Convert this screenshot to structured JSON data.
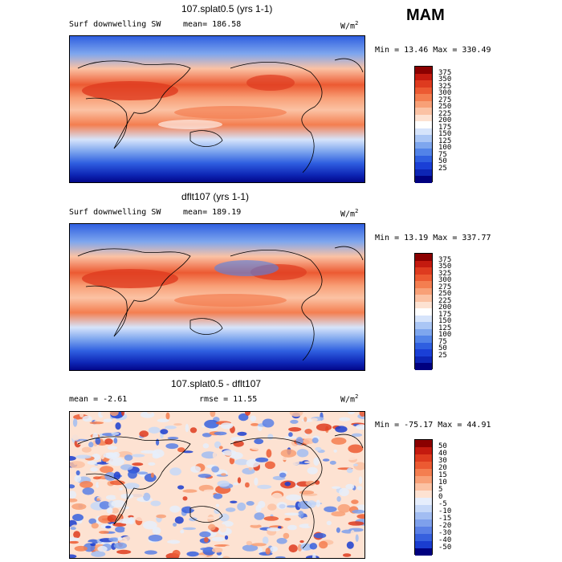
{
  "season": "MAM",
  "panels": [
    {
      "title": "107.splat0.5 (yrs 1-1)",
      "variable": "Surf downwelling SW",
      "mean_label": "mean=",
      "mean_value": "186.58",
      "units_base": "W/m",
      "units_exp": "2",
      "minmax": "Min =  13.46 Max = 330.49",
      "levels": [
        "375",
        "350",
        "325",
        "300",
        "275",
        "250",
        "225",
        "200",
        "175",
        "150",
        "125",
        "100",
        "75",
        "50",
        "25"
      ],
      "colors": [
        "#8b0000",
        "#c41a0f",
        "#de3b1f",
        "#ec5a32",
        "#f47e50",
        "#f8a077",
        "#fbc2a4",
        "#fde2d2",
        "#ffffff",
        "#d6e4fb",
        "#aac6f5",
        "#7ea6ee",
        "#5283e8",
        "#2f5fe0",
        "#1a3fd6",
        "#0d25b5",
        "#00007f"
      ],
      "stops": [
        {
          "lat": "90N",
          "v": 50
        },
        {
          "lat": "60N",
          "v": 120
        },
        {
          "lat": "30N",
          "v": 280
        },
        {
          "lat": "0",
          "v": 230
        },
        {
          "lat": "30S",
          "v": 270
        },
        {
          "lat": "60S",
          "v": 80
        },
        {
          "lat": "90S",
          "v": 20
        }
      ]
    },
    {
      "title": "dflt107 (yrs 1-1)",
      "variable": "Surf downwelling SW",
      "mean_label": "mean=",
      "mean_value": "189.19",
      "units_base": "W/m",
      "units_exp": "2",
      "minmax": "Min =  13.19 Max = 337.77",
      "levels": [
        "375",
        "350",
        "325",
        "300",
        "275",
        "250",
        "225",
        "200",
        "175",
        "150",
        "125",
        "100",
        "75",
        "50",
        "25"
      ],
      "colors": [
        "#8b0000",
        "#c41a0f",
        "#de3b1f",
        "#ec5a32",
        "#f47e50",
        "#f8a077",
        "#fbc2a4",
        "#fde2d2",
        "#ffffff",
        "#d6e4fb",
        "#aac6f5",
        "#7ea6ee",
        "#5283e8",
        "#2f5fe0",
        "#1a3fd6",
        "#0d25b5",
        "#00007f"
      ]
    },
    {
      "title": "107.splat0.5 - dflt107",
      "mean_label": "mean =",
      "mean_value": "-2.61",
      "rmse_label": "rmse =",
      "rmse_value": "11.55",
      "units_base": "W/m",
      "units_exp": "2",
      "minmax": "Min = -75.17 Max =  44.91",
      "levels": [
        "50",
        "40",
        "30",
        "20",
        "15",
        "10",
        "5",
        "0",
        "-5",
        "-10",
        "-15",
        "-20",
        "-30",
        "-40",
        "-50"
      ],
      "colors": [
        "#8b0000",
        "#c41a0f",
        "#de3b1f",
        "#ec5a32",
        "#f47e50",
        "#f8a077",
        "#fbc2a4",
        "#fde2d2",
        "#e6eefc",
        "#c6d8f8",
        "#a2bdf2",
        "#7ea0ec",
        "#5a80e6",
        "#3660de",
        "#1a3dd0",
        "#00007f"
      ]
    }
  ]
}
